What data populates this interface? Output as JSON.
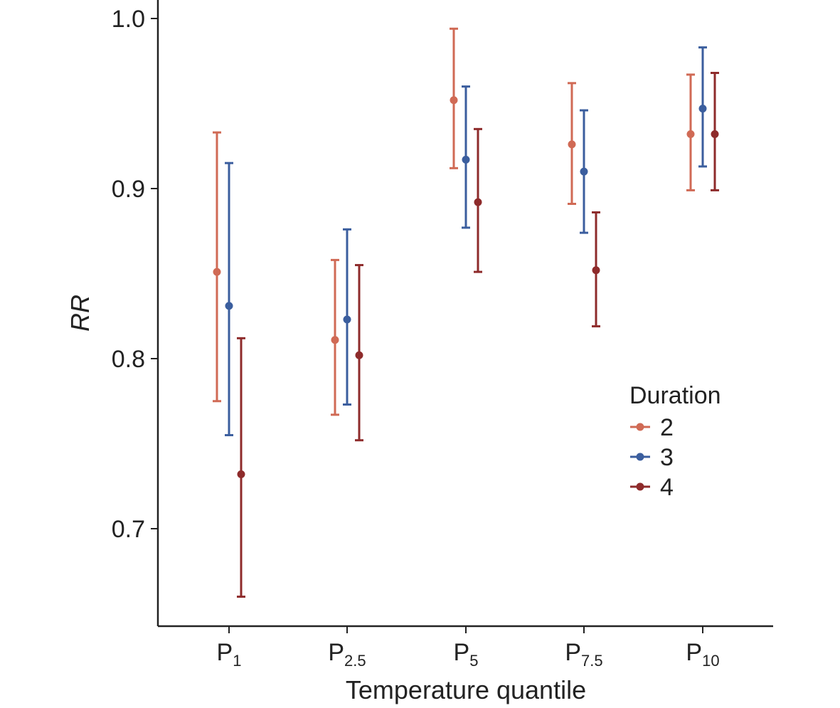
{
  "chart_data": {
    "type": "errorbar",
    "xlabel": "Temperature quantile",
    "ylabel": "RR",
    "ylim": [
      0.65,
      1.01
    ],
    "yticks": [
      0.7,
      0.8,
      0.9,
      1.0
    ],
    "ytick_labels": [
      "0.7",
      "0.8",
      "0.9",
      "1.0"
    ],
    "categories": [
      {
        "base": "P",
        "sub": "1"
      },
      {
        "base": "P",
        "sub": "2.5"
      },
      {
        "base": "P",
        "sub": "5"
      },
      {
        "base": "P",
        "sub": "7.5"
      },
      {
        "base": "P",
        "sub": "10"
      }
    ],
    "legend": {
      "title": "Duration",
      "position": "right"
    },
    "series": [
      {
        "name": "2",
        "color": "#D06A55",
        "values": [
          0.851,
          0.811,
          0.952,
          0.926,
          0.932
        ],
        "lower": [
          0.775,
          0.767,
          0.912,
          0.891,
          0.899
        ],
        "upper": [
          0.933,
          0.858,
          0.994,
          0.962,
          0.967
        ]
      },
      {
        "name": "3",
        "color": "#3B5E9E",
        "values": [
          0.831,
          0.823,
          0.917,
          0.91,
          0.947
        ],
        "lower": [
          0.755,
          0.773,
          0.877,
          0.874,
          0.913
        ],
        "upper": [
          0.915,
          0.876,
          0.96,
          0.946,
          0.983
        ]
      },
      {
        "name": "4",
        "color": "#8E2B2B",
        "values": [
          0.732,
          0.802,
          0.892,
          0.852,
          0.932
        ],
        "lower": [
          0.66,
          0.752,
          0.851,
          0.819,
          0.899
        ],
        "upper": [
          0.812,
          0.855,
          0.935,
          0.886,
          0.968
        ]
      }
    ]
  }
}
